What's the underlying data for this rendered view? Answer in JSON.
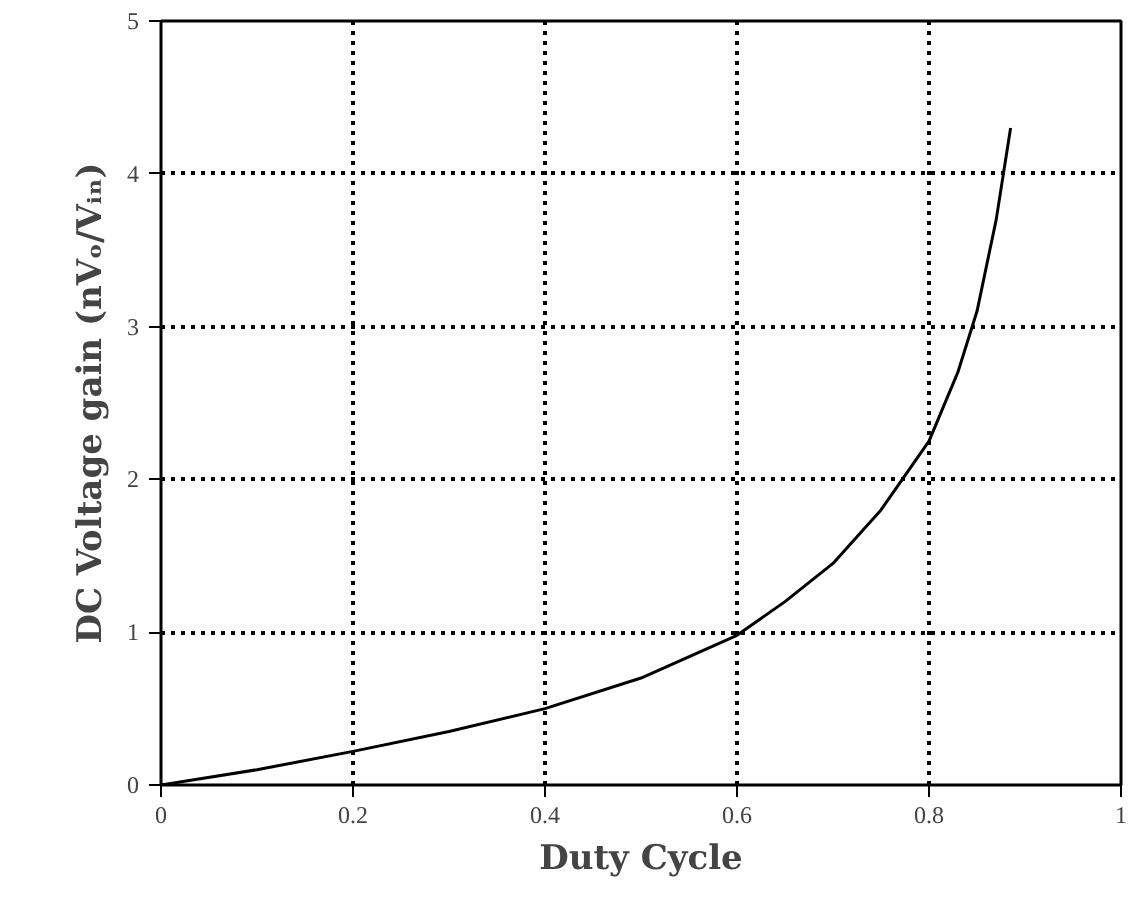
{
  "chart_data": {
    "type": "line",
    "xlabel": "Duty Cycle",
    "ylabel": "DC Voltage gain (nVₒ/Vᵢₙ)",
    "x": [
      0,
      0.1,
      0.2,
      0.3,
      0.4,
      0.5,
      0.6,
      0.65,
      0.7,
      0.75,
      0.8,
      0.83,
      0.85,
      0.87,
      0.885
    ],
    "series": [
      {
        "color": "#000000",
        "values": [
          0,
          0.1,
          0.22,
          0.35,
          0.5,
          0.7,
          0.98,
          1.2,
          1.45,
          1.8,
          2.25,
          2.7,
          3.1,
          3.7,
          4.3
        ]
      }
    ],
    "xlim": [
      0,
      1
    ],
    "ylim": [
      0,
      5
    ],
    "xticks": [
      0,
      0.2,
      0.4,
      0.6,
      0.8,
      1
    ],
    "yticks": [
      0,
      1,
      2,
      3,
      4,
      5
    ],
    "grid": true,
    "line_style": "solid",
    "marker": "none"
  }
}
